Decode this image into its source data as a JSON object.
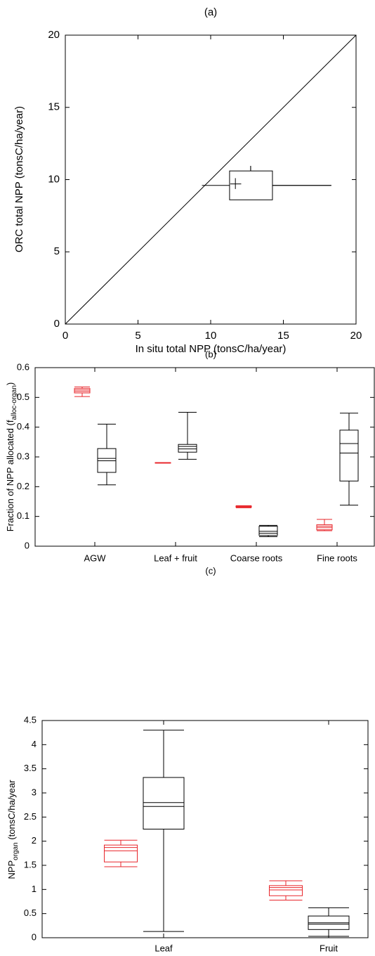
{
  "chart_data": [
    {
      "type": "cross_box",
      "title": "(a)",
      "xlabel": "In situ total NPP (tonsC/ha/year)",
      "ylabel": "ORC total NPP (tonsC/ha/year)",
      "xlim": [
        0,
        20
      ],
      "ylim": [
        0,
        20
      ],
      "xticks": [
        0,
        5,
        10,
        15,
        20
      ],
      "yticks": [
        0,
        5,
        10,
        15,
        20
      ],
      "diagonal": true,
      "color": "#000000",
      "box": {
        "x_whislo": 9.4,
        "x_q1": 11.3,
        "x_q3": 14.25,
        "x_whishi": 18.3,
        "whisker_y": 9.6,
        "y_whislo": 8.6,
        "y_q1": 8.6,
        "y_q3": 10.6,
        "y_whishi": 10.95,
        "whisker_x": 12.75
      },
      "marker": {
        "x": 11.7,
        "y": 9.7,
        "x_lo": 11.35,
        "x_hi": 12.1,
        "y_lo": 9.35,
        "y_hi": 10.1
      }
    },
    {
      "type": "box",
      "title": "(b)",
      "ylabel": "Fraction of NPP allocated (f",
      "ylabel_sub": "alloc-organ",
      "ylabel_end": ")",
      "categories": [
        "AGW",
        "Leaf + fruit",
        "Coarse roots",
        "Fine roots"
      ],
      "ylim": [
        0,
        0.6
      ],
      "yticks": [
        0,
        0.1,
        0.2,
        0.3,
        0.4,
        0.5,
        0.6
      ],
      "series": [
        {
          "color": "#e8262b",
          "boxes": [
            {
              "whislo": 0.503,
              "q1": 0.515,
              "med": 0.52,
              "mean": 0.525,
              "q3": 0.53,
              "whishi": 0.535
            },
            {
              "whislo": 0.279,
              "q1": 0.279,
              "med": 0.28,
              "mean": 0.28,
              "q3": 0.281,
              "whishi": 0.281
            },
            {
              "whislo": 0.129,
              "q1": 0.131,
              "med": 0.133,
              "mean": 0.133,
              "q3": 0.135,
              "whishi": 0.136
            },
            {
              "whislo": 0.052,
              "q1": 0.055,
              "med": 0.062,
              "mean": 0.067,
              "q3": 0.072,
              "whishi": 0.09
            }
          ]
        },
        {
          "color": "#000000",
          "boxes": [
            {
              "whislo": 0.206,
              "q1": 0.248,
              "med": 0.287,
              "mean": 0.295,
              "q3": 0.328,
              "whishi": 0.41
            },
            {
              "whislo": 0.292,
              "q1": 0.316,
              "med": 0.327,
              "mean": 0.335,
              "q3": 0.342,
              "whishi": 0.45
            },
            {
              "whislo": 0.032,
              "q1": 0.036,
              "med": 0.043,
              "mean": 0.05,
              "q3": 0.067,
              "whishi": 0.07
            },
            {
              "whislo": 0.138,
              "q1": 0.219,
              "med": 0.313,
              "mean": 0.345,
              "q3": 0.39,
              "whishi": 0.447
            }
          ]
        }
      ]
    },
    {
      "type": "box",
      "title": "(c)",
      "ylabel": "NPP",
      "ylabel_sub": "organ",
      "ylabel_end": " (tonsC/ha/year",
      "categories": [
        "Leaf",
        "Fruit"
      ],
      "ylim": [
        0,
        4.5
      ],
      "yticks": [
        0,
        0.5,
        1,
        1.5,
        2,
        2.5,
        3,
        3.5,
        4,
        4.5
      ],
      "series": [
        {
          "color": "#e8262b",
          "boxes": [
            {
              "whislo": 1.47,
              "q1": 1.57,
              "med": 1.8,
              "mean": 1.87,
              "q3": 1.92,
              "whishi": 2.02
            },
            {
              "whislo": 0.78,
              "q1": 0.87,
              "med": 0.99,
              "mean": 1.04,
              "q3": 1.08,
              "whishi": 1.18
            }
          ]
        },
        {
          "color": "#000000",
          "boxes": [
            {
              "whislo": 0.13,
              "q1": 2.25,
              "med": 2.72,
              "mean": 2.8,
              "q3": 3.32,
              "whishi": 4.3
            },
            {
              "whislo": 0.03,
              "q1": 0.17,
              "med": 0.28,
              "mean": 0.31,
              "q3": 0.45,
              "whishi": 0.62
            }
          ]
        }
      ]
    }
  ]
}
